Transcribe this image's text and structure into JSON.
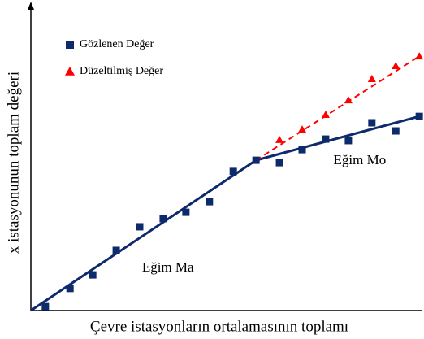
{
  "chart_data": {
    "type": "scatter",
    "x_label": "Çevre istasyonların  ortalamasının toplamı",
    "y_label": "x istasyonunun toplam değeri",
    "xlim": [
      0,
      100
    ],
    "ylim": [
      0,
      100
    ],
    "series": [
      {
        "name": "Gözlenen Değer",
        "color": "#0d2a6b",
        "marker": "square",
        "x": [
          3.7,
          10,
          15.8,
          21.8,
          27.8,
          33.8,
          39.6,
          45.6,
          51.7,
          57.5,
          63.5,
          69.3,
          75.3,
          81.1,
          87.1,
          93.2,
          99.2
        ],
        "values": [
          1.3,
          7.3,
          11.8,
          19.9,
          27.7,
          30.4,
          32.5,
          36.0,
          46.0,
          49.7,
          48.9,
          53.2,
          56.7,
          56.2,
          62.1,
          59.4,
          64.2
        ]
      },
      {
        "name": "Düzeltilmiş Değer",
        "color": "#ff0000",
        "marker": "triangle",
        "x": [
          63.5,
          69.3,
          75.3,
          81.1,
          87.1,
          93.2,
          99.2
        ],
        "values": [
          56.5,
          59.9,
          64.8,
          69.6,
          76.6,
          80.9,
          84.1
        ]
      }
    ],
    "lines": [
      {
        "color": "#0d2a6b",
        "dashed": false,
        "x": [
          0,
          57.5
        ],
        "values": [
          0,
          49.7
        ]
      },
      {
        "color": "#0d2a6b",
        "dashed": false,
        "x": [
          57.5,
          99.2
        ],
        "values": [
          49.7,
          64.2
        ]
      },
      {
        "color": "#ff0000",
        "dashed": true,
        "x": [
          57.5,
          99.2
        ],
        "values": [
          49.7,
          84.1
        ]
      }
    ],
    "annotations": [
      {
        "text": "Eğim Ma",
        "x": 35,
        "y": 14
      },
      {
        "text": "Eğim Mo",
        "x": 84,
        "y": 49.5
      }
    ]
  }
}
